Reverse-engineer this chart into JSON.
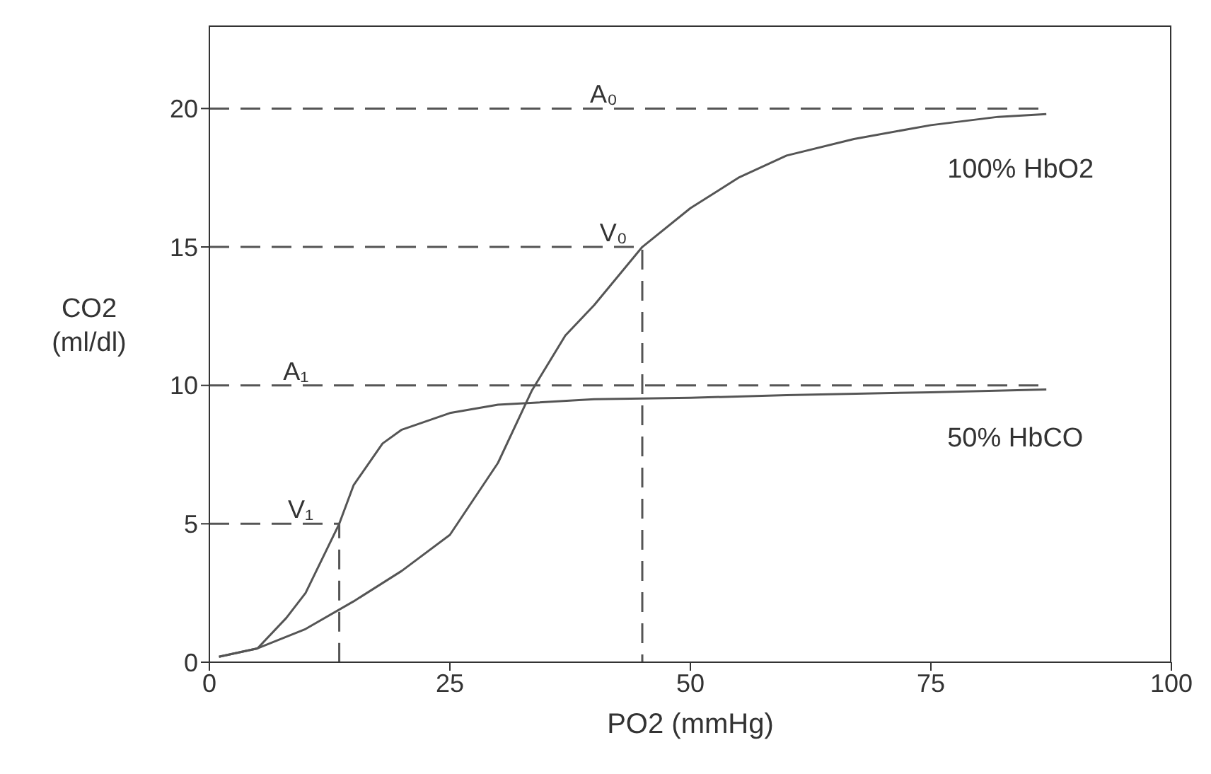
{
  "chart_data": {
    "type": "line",
    "xlabel": "PO2  (mmHg)",
    "ylabel": "CO2\n(ml/dl)",
    "xlim": [
      0,
      100
    ],
    "ylim": [
      0,
      23
    ],
    "xticks": [
      0,
      25,
      50,
      75,
      100
    ],
    "yticks": [
      0,
      5,
      10,
      15,
      20
    ],
    "line_style": "solid",
    "series": [
      {
        "name": "100% HbO2",
        "color": "#555555",
        "x": [
          1,
          5,
          10,
          15,
          20,
          25,
          30,
          33.5,
          37,
          40,
          45,
          50,
          55,
          60,
          67,
          75,
          82,
          87
        ],
        "values": [
          0.2,
          0.5,
          1.2,
          2.2,
          3.3,
          4.6,
          7.2,
          9.8,
          11.8,
          12.9,
          15,
          16.4,
          17.5,
          18.3,
          18.9,
          19.4,
          19.7,
          19.8
        ]
      },
      {
        "name": "50% HbCO",
        "color": "#555555",
        "x": [
          1,
          5,
          8,
          10,
          13.5,
          15,
          18,
          20,
          25,
          30,
          40,
          50,
          60,
          75,
          87
        ],
        "values": [
          0.2,
          0.5,
          1.6,
          2.5,
          5,
          6.4,
          7.9,
          8.4,
          9.0,
          9.3,
          9.5,
          9.55,
          9.65,
          9.75,
          9.85
        ]
      },
      {
        "type": "line",
        "line_style": "dashed",
        "color": "#555555",
        "x": [
          0,
          87
        ],
        "values": [
          20,
          20
        ]
      },
      {
        "type": "line",
        "line_style": "dashed",
        "color": "#555555",
        "x": [
          0,
          45,
          45
        ],
        "values": [
          15,
          15,
          0
        ]
      },
      {
        "type": "line",
        "line_style": "dashed",
        "color": "#555555",
        "x": [
          0,
          87
        ],
        "values": [
          10,
          10
        ]
      },
      {
        "type": "line",
        "line_style": "dashed",
        "color": "#555555",
        "x": [
          0,
          13.5,
          13.5
        ],
        "values": [
          5,
          5,
          0
        ]
      }
    ],
    "annotations": [
      {
        "text": "A₀",
        "x": 41,
        "y": 20
      },
      {
        "text": "V₀",
        "x": 42,
        "y": 15
      },
      {
        "text": "A₁",
        "x": 9,
        "y": 10
      },
      {
        "text": "V₁",
        "x": 9.5,
        "y": 5
      }
    ]
  }
}
